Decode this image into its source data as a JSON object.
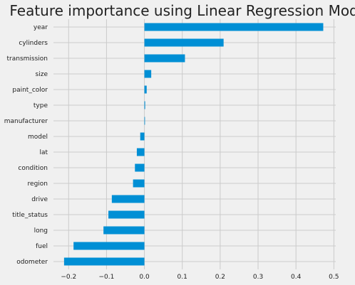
{
  "chart_data": {
    "type": "bar",
    "orientation": "horizontal",
    "title": "Feature importance using Linear Regression Model",
    "xlabel": "",
    "ylabel": "",
    "xlim": [
      -0.24,
      0.505
    ],
    "xticks": [
      -0.2,
      -0.1,
      0.0,
      0.1,
      0.2,
      0.3,
      0.4,
      0.5
    ],
    "xtick_labels": [
      "−0.2",
      "−0.1",
      "0.0",
      "0.1",
      "0.2",
      "0.3",
      "0.4",
      "0.5"
    ],
    "grid": true,
    "bar_color": "#008fd5",
    "categories": [
      "year",
      "cylinders",
      "transmission",
      "size",
      "paint_color",
      "type",
      "manufacturer",
      "model",
      "lat",
      "condition",
      "region",
      "drive",
      "title_status",
      "long",
      "fuel",
      "odometer"
    ],
    "values": [
      0.472,
      0.209,
      0.107,
      0.018,
      0.006,
      0.002,
      0.0,
      -0.011,
      -0.02,
      -0.025,
      -0.03,
      -0.086,
      -0.095,
      -0.108,
      -0.187,
      -0.212
    ]
  }
}
